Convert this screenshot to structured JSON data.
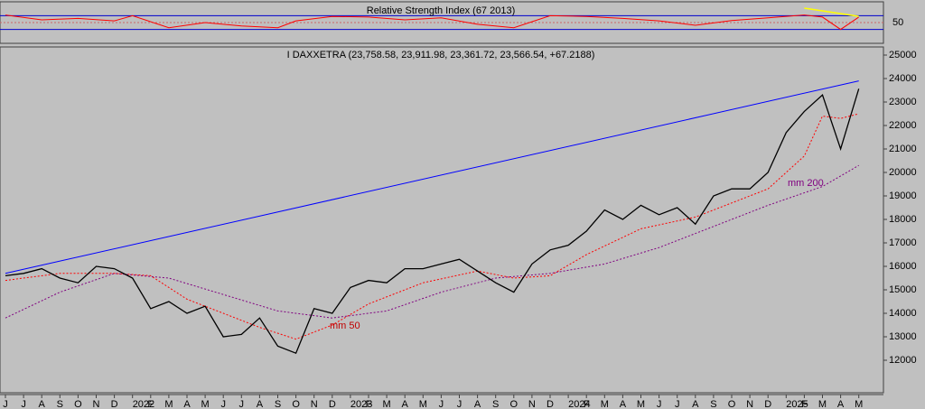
{
  "chart_data": [
    {
      "type": "line",
      "title": "Relative Strength Index (67 2013)",
      "y_tick_labels": [
        "50"
      ],
      "ylim": [
        0,
        100
      ],
      "overbought_level": 70,
      "midline": 50,
      "oversold_level": 30,
      "series": [
        {
          "color": "#ff0000",
          "x": [
            "2021-06",
            "2021-08",
            "2021-10",
            "2021-12",
            "2022-01",
            "2022-03",
            "2022-05",
            "2022-07",
            "2022-09",
            "2022-10",
            "2022-12",
            "2023-02",
            "2023-04",
            "2023-06",
            "2023-08",
            "2023-10",
            "2023-12",
            "2024-02",
            "2024-04",
            "2024-06",
            "2024-08",
            "2024-10",
            "2024-12",
            "2025-02",
            "2025-03",
            "2025-04",
            "2025-05"
          ],
          "values": [
            72,
            58,
            62,
            55,
            70,
            35,
            50,
            40,
            35,
            55,
            68,
            66,
            58,
            64,
            45,
            35,
            70,
            68,
            62,
            55,
            42,
            56,
            64,
            72,
            66,
            30,
            66
          ]
        }
      ],
      "trendline": {
        "color": "#ffff00",
        "from": [
          "2025-02",
          92
        ],
        "to": [
          "2025-05",
          68
        ]
      }
    },
    {
      "type": "line",
      "title": "I DAXXETRA (23,758.58, 23,911.98, 23,361.72, 23,566.54, +67.2188)",
      "ylim": [
        11500,
        25200
      ],
      "y_ticks": [
        12000,
        13000,
        14000,
        15000,
        16000,
        17000,
        18000,
        19000,
        20000,
        21000,
        22000,
        23000,
        24000,
        25000
      ],
      "y_tick_labels": [
        "12000",
        "13000",
        "14000",
        "15000",
        "16000",
        "17000",
        "18000",
        "19000",
        "20000",
        "21000",
        "22000",
        "23000",
        "24000",
        "25000"
      ],
      "x_tick_labels": [
        "J",
        "J",
        "A",
        "S",
        "O",
        "N",
        "D",
        "2022",
        "F",
        "M",
        "A",
        "M",
        "J",
        "J",
        "A",
        "S",
        "O",
        "N",
        "D",
        "2023",
        "F",
        "M",
        "A",
        "M",
        "J",
        "J",
        "A",
        "S",
        "O",
        "N",
        "D",
        "2024",
        "F",
        "M",
        "A",
        "M",
        "J",
        "J",
        "A",
        "S",
        "O",
        "N",
        "D",
        "2025",
        "F",
        "M",
        "A",
        "M"
      ],
      "annotations": [
        "mm 50",
        "mm 200"
      ],
      "series": [
        {
          "color": "#000000",
          "x": [
            "2021-06",
            "2021-07",
            "2021-08",
            "2021-09",
            "2021-10",
            "2021-11",
            "2021-12",
            "2022-01",
            "2022-02",
            "2022-03",
            "2022-04",
            "2022-05",
            "2022-06",
            "2022-07",
            "2022-08",
            "2022-09",
            "2022-10",
            "2022-11",
            "2022-12",
            "2023-01",
            "2023-02",
            "2023-03",
            "2023-04",
            "2023-05",
            "2023-06",
            "2023-07",
            "2023-08",
            "2023-09",
            "2023-10",
            "2023-11",
            "2023-12",
            "2024-01",
            "2024-02",
            "2024-03",
            "2024-04",
            "2024-05",
            "2024-06",
            "2024-07",
            "2024-08",
            "2024-09",
            "2024-10",
            "2024-11",
            "2024-12",
            "2025-01",
            "2025-02",
            "2025-03",
            "2025-04",
            "2025-05"
          ],
          "values": [
            15600,
            15700,
            15900,
            15500,
            15300,
            16000,
            15900,
            15500,
            14200,
            14500,
            14000,
            14300,
            13000,
            13100,
            13800,
            12600,
            12300,
            14200,
            14000,
            15100,
            15400,
            15300,
            15900,
            15900,
            16100,
            16300,
            15800,
            15300,
            14900,
            16100,
            16700,
            16900,
            17500,
            18400,
            18000,
            18600,
            18200,
            18500,
            17800,
            19000,
            19300,
            19300,
            20000,
            21700,
            22600,
            23300,
            21000,
            23566
          ]
        },
        {
          "name": "mm 50",
          "color": "#ff0000",
          "x": [
            "2021-06",
            "2021-09",
            "2021-12",
            "2022-02",
            "2022-04",
            "2022-06",
            "2022-08",
            "2022-10",
            "2022-12",
            "2023-02",
            "2023-05",
            "2023-08",
            "2023-10",
            "2023-12",
            "2024-02",
            "2024-05",
            "2024-08",
            "2024-10",
            "2024-12",
            "2025-02",
            "2025-03",
            "2025-04",
            "2025-05"
          ],
          "values": [
            15400,
            15700,
            15700,
            15600,
            14600,
            14000,
            13400,
            12900,
            13500,
            14400,
            15300,
            15800,
            15500,
            15600,
            16500,
            17600,
            18100,
            18700,
            19300,
            20700,
            22400,
            22300,
            22500
          ]
        },
        {
          "name": "mm 200",
          "color": "#800080",
          "x": [
            "2021-06",
            "2021-09",
            "2021-12",
            "2022-03",
            "2022-06",
            "2022-09",
            "2022-12",
            "2023-03",
            "2023-06",
            "2023-09",
            "2023-12",
            "2024-03",
            "2024-06",
            "2024-09",
            "2024-12",
            "2025-03",
            "2025-05"
          ],
          "values": [
            13800,
            14900,
            15700,
            15500,
            14800,
            14100,
            13800,
            14100,
            14900,
            15500,
            15700,
            16100,
            16800,
            17700,
            18600,
            19400,
            20300
          ]
        }
      ],
      "trendline": {
        "color": "#0000ff",
        "from": [
          "2021-06",
          15700
        ],
        "to": [
          "2025-05",
          23900
        ]
      }
    }
  ]
}
